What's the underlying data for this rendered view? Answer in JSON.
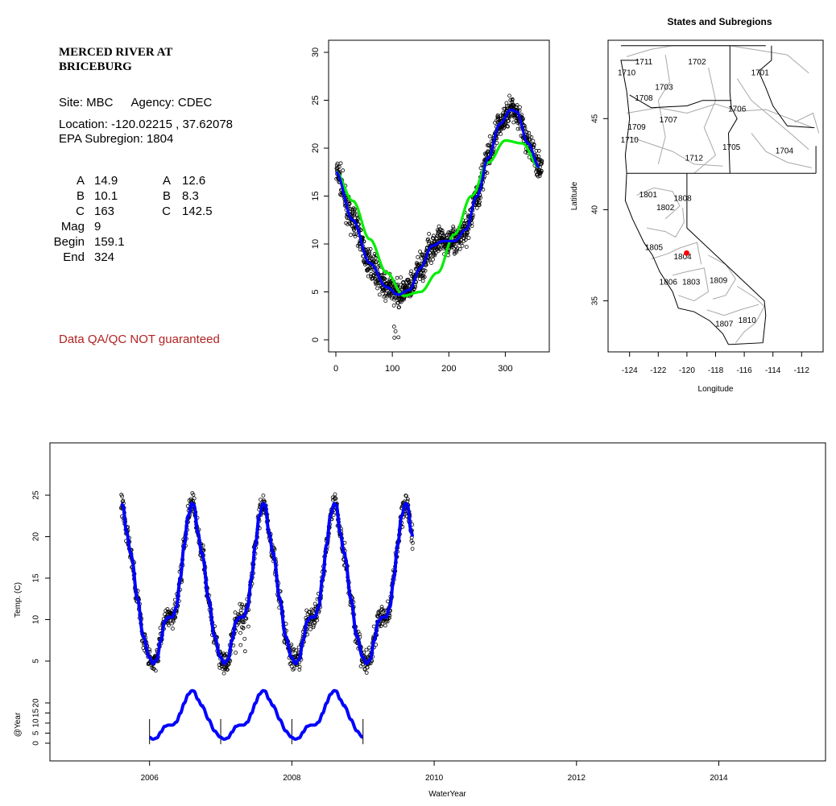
{
  "site_panel": {
    "title_line1": "MERCED RIVER AT",
    "title_line2": "BRICEBURG",
    "site_label": "Site: MBC",
    "agency_label": "Agency: CDEC",
    "location": "Location: -120.02215 , 37.62078",
    "subregion": "EPA Subregion: 1804",
    "params_left": [
      {
        "label": "A",
        "value": "14.9"
      },
      {
        "label": "B",
        "value": "10.1"
      },
      {
        "label": "C",
        "value": "163"
      },
      {
        "label": "Mag",
        "value": "9"
      },
      {
        "label": "Begin",
        "value": "159.1"
      },
      {
        "label": "End",
        "value": "324"
      }
    ],
    "params_right": [
      {
        "label": "A",
        "value": "12.6"
      },
      {
        "label": "B",
        "value": "8.3"
      },
      {
        "label": "C",
        "value": "142.5"
      }
    ],
    "qa_note": "Data QA/QC NOT guaranteed",
    "qa_color": "#b22222"
  },
  "chart_data": [
    {
      "type": "scatter",
      "title": "",
      "xlabel": "",
      "ylabel": "",
      "xlim": [
        0,
        365
      ],
      "ylim": [
        0,
        30
      ],
      "xticks": [
        0,
        100,
        200,
        300
      ],
      "yticks": [
        0,
        5,
        10,
        15,
        20,
        25,
        30
      ],
      "grid": false,
      "points_style": "open black circles",
      "fits": [
        {
          "color": "#00ee00",
          "x": [
            0,
            30,
            60,
            90,
            120,
            150,
            180,
            210,
            240,
            270,
            300,
            330,
            360
          ],
          "y": [
            17.5,
            14.5,
            10.5,
            7.0,
            4.6,
            5.0,
            7.0,
            11.0,
            15.0,
            18.5,
            20.8,
            20.5,
            18.0
          ]
        },
        {
          "color": "#0000ff",
          "x": [
            0,
            30,
            60,
            90,
            110,
            130,
            150,
            170,
            190,
            210,
            230,
            250,
            270,
            290,
            310,
            320,
            340,
            360
          ],
          "y": [
            17.5,
            12.5,
            8.0,
            5.5,
            4.7,
            5.2,
            7.5,
            9.8,
            10.3,
            10.3,
            11.5,
            15.0,
            19.0,
            22.5,
            24.0,
            23.8,
            20.5,
            18.0
          ]
        }
      ]
    },
    {
      "type": "map",
      "title": "States and Subregions",
      "xlabel": "Longitude",
      "ylabel": "Latitude",
      "xlim": [
        -125.5,
        -110.5
      ],
      "ylim": [
        32.2,
        49.3
      ],
      "xticks": [
        -124,
        -122,
        -120,
        -118,
        -116,
        -114,
        -112
      ],
      "yticks": [
        35,
        40,
        45
      ],
      "site_marker": {
        "lon": -120.02,
        "lat": 37.62,
        "color": "#ff0000"
      },
      "region_labels": [
        {
          "label": "1711",
          "lon": -123.0,
          "lat": 48.1
        },
        {
          "label": "1710",
          "lon": -124.2,
          "lat": 47.5
        },
        {
          "label": "1702",
          "lon": -119.3,
          "lat": 48.1
        },
        {
          "label": "1701",
          "lon": -114.9,
          "lat": 47.5
        },
        {
          "label": "1703",
          "lon": -121.6,
          "lat": 46.7
        },
        {
          "label": "1708",
          "lon": -123.0,
          "lat": 46.1
        },
        {
          "label": "1706",
          "lon": -116.5,
          "lat": 45.5
        },
        {
          "label": "1707",
          "lon": -121.3,
          "lat": 44.9
        },
        {
          "label": "1709",
          "lon": -123.5,
          "lat": 44.5
        },
        {
          "label": "1710",
          "lon": -124.0,
          "lat": 43.8
        },
        {
          "label": "1705",
          "lon": -116.9,
          "lat": 43.4
        },
        {
          "label": "1704",
          "lon": -113.2,
          "lat": 43.2
        },
        {
          "label": "1712",
          "lon": -119.5,
          "lat": 42.8
        },
        {
          "label": "1801",
          "lon": -122.7,
          "lat": 40.8
        },
        {
          "label": "1808",
          "lon": -120.3,
          "lat": 40.6
        },
        {
          "label": "1802",
          "lon": -121.5,
          "lat": 40.1
        },
        {
          "label": "1805",
          "lon": -122.3,
          "lat": 37.9
        },
        {
          "label": "1804",
          "lon": -120.3,
          "lat": 37.4
        },
        {
          "label": "1809",
          "lon": -117.8,
          "lat": 36.1
        },
        {
          "label": "1806",
          "lon": -121.3,
          "lat": 36.0
        },
        {
          "label": "1803",
          "lon": -119.7,
          "lat": 36.0
        },
        {
          "label": "1810",
          "lon": -115.8,
          "lat": 33.9
        },
        {
          "label": "1807",
          "lon": -117.4,
          "lat": 33.7
        }
      ]
    },
    {
      "type": "scatter",
      "title": "",
      "xlabel": "WaterYear",
      "ylabel": "Temp. (C)",
      "xlim": [
        2004.6,
        2015.5
      ],
      "ylim": [
        0,
        30
      ],
      "xticks": [
        2006,
        2008,
        2010,
        2012,
        2014
      ],
      "yticks": [
        5,
        10,
        15,
        20,
        25
      ],
      "grid": false,
      "data_range_x": [
        2005.6,
        2009.7
      ],
      "fit_color": "#0000ff",
      "fit_peak_years": [
        2005.85,
        2006.85,
        2007.85,
        2008.85
      ],
      "fit_peak_value": 24.0,
      "fit_trough_value": 4.7,
      "year_panel": {
        "ylabel": "@Year",
        "yticks": [
          0,
          5,
          10,
          15,
          20
        ],
        "x": [
          2006.0,
          2009.0
        ],
        "year_markers": [
          2006,
          2007,
          2008,
          2009
        ]
      }
    }
  ]
}
